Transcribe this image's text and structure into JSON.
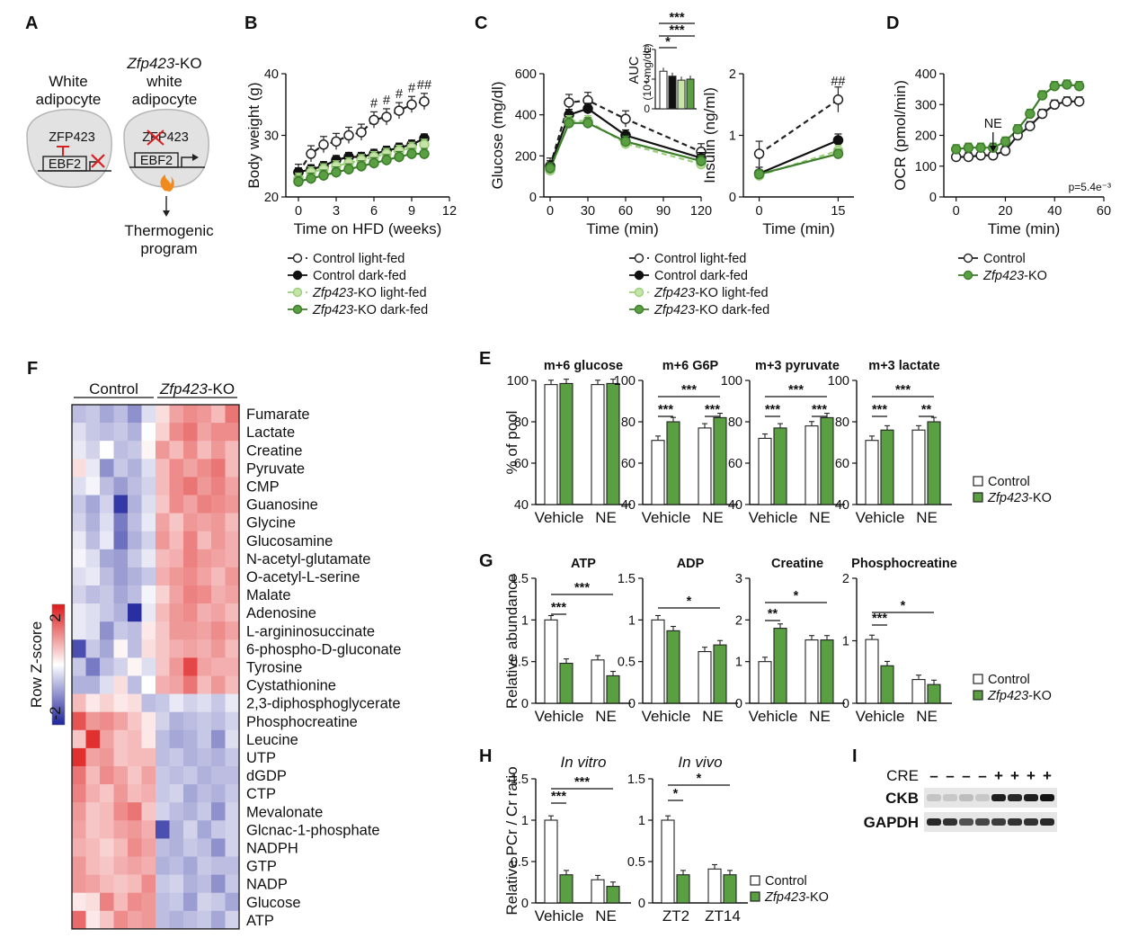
{
  "panel_labels": {
    "A": "A",
    "B": "B",
    "C": "C",
    "D": "D",
    "E": "E",
    "F": "F",
    "G": "G",
    "H": "H",
    "I": "I"
  },
  "panelA": {
    "left_title_1": "White",
    "left_title_2": "adipocyte",
    "right_title_1_italic": "Zfp423",
    "right_title_1_rest": "-KO",
    "right_title_2": "white",
    "right_title_3": "adipocyte",
    "protein": "ZFP423",
    "protein_struck": "ZFP423",
    "gene": "EBF2",
    "outcome_1": "Thermogenic",
    "outcome_2": "program"
  },
  "legend_diet": [
    {
      "label_italic": "",
      "label": "Control light-fed",
      "fill": "#ffffff",
      "stroke": "#222222",
      "dash": "6,4"
    },
    {
      "label_italic": "",
      "label": "Control dark-fed",
      "fill": "#111111",
      "stroke": "#111111",
      "dash": ""
    },
    {
      "label_italic": "Zfp423",
      "label": "-KO light-fed",
      "fill": "#c6e3a8",
      "stroke": "#9ccf7b",
      "dash": "6,4"
    },
    {
      "label_italic": "Zfp423",
      "label": "-KO dark-fed",
      "fill": "#5aa042",
      "stroke": "#3d7d2c",
      "dash": ""
    }
  ],
  "legend_geno": [
    {
      "label_italic": "",
      "label": "Control",
      "fill": "#ffffff",
      "stroke": "#222222"
    },
    {
      "label_italic": "Zfp423",
      "label": "-KO",
      "fill": "#5aa042",
      "stroke": "#3d7d2c"
    }
  ],
  "chart_data": [
    {
      "id": "B",
      "type": "line",
      "xlabel": "Time on HFD (weeks)",
      "ylabel": "Body weight (g)",
      "xlim": [
        -1,
        12
      ],
      "ylim": [
        20,
        40
      ],
      "xticks": [
        "0",
        "3",
        "6",
        "9",
        "12"
      ],
      "yticks": [
        "20",
        "30",
        "40"
      ],
      "x": [
        0,
        1,
        2,
        3,
        4,
        5,
        6,
        7,
        8,
        9,
        10
      ],
      "series": [
        {
          "name": "Control light-fed",
          "values": [
            24,
            27,
            28.5,
            29,
            30,
            30.5,
            32.5,
            33,
            34,
            35,
            35.5
          ]
        },
        {
          "name": "Control dark-fed",
          "values": [
            24,
            24.5,
            25,
            26,
            26.5,
            26.5,
            27,
            27.5,
            28,
            28.5,
            29.5
          ]
        },
        {
          "name": "Zfp423-KO light-fed",
          "values": [
            23,
            24,
            24.5,
            25,
            25.5,
            26,
            26.5,
            27,
            27.5,
            28,
            28.5
          ]
        },
        {
          "name": "Zfp423-KO dark-fed",
          "values": [
            22.5,
            23,
            23.5,
            24,
            24.5,
            25,
            25.5,
            26,
            26.5,
            27,
            27
          ]
        }
      ],
      "annotations": [
        "#",
        "#",
        "#",
        "#",
        "##"
      ]
    },
    {
      "id": "C1",
      "type": "line",
      "xlabel": "Time (min)",
      "ylabel": "Glucose (mg/dl)",
      "xlim": [
        -5,
        120
      ],
      "ylim": [
        0,
        600
      ],
      "xticks": [
        "0",
        "30",
        "60",
        "90",
        "120"
      ],
      "yticks": [
        "0",
        "200",
        "400",
        "600"
      ],
      "x": [
        0,
        15,
        30,
        60,
        120
      ],
      "series": [
        {
          "name": "Control light-fed",
          "values": [
            150,
            460,
            470,
            380,
            220
          ]
        },
        {
          "name": "Control dark-fed",
          "values": [
            150,
            400,
            430,
            300,
            190
          ]
        },
        {
          "name": "Zfp423-KO light-fed",
          "values": [
            130,
            370,
            370,
            260,
            160
          ]
        },
        {
          "name": "Zfp423-KO dark-fed",
          "values": [
            140,
            360,
            360,
            270,
            175
          ]
        }
      ]
    },
    {
      "id": "C_inset",
      "type": "bar",
      "ylabel": "AUC",
      "ylabel_units": "(10⁴ mg/dL)",
      "ylim": [
        0,
        6
      ],
      "yticks": [
        "0",
        "3",
        "6"
      ],
      "values": [
        3.8,
        3.3,
        2.9,
        3.0
      ],
      "annotations": [
        "***",
        "***",
        "*"
      ]
    },
    {
      "id": "C2",
      "type": "line",
      "xlabel": "Time (min)",
      "ylabel": "Insulin (ng/ml)",
      "xlim": [
        -3,
        18
      ],
      "ylim": [
        0,
        2
      ],
      "xticks": [
        "0",
        "15"
      ],
      "yticks": [
        "0",
        "1",
        "2"
      ],
      "x": [
        0,
        15
      ],
      "series": [
        {
          "name": "Control light-fed",
          "values": [
            0.7,
            1.58
          ]
        },
        {
          "name": "Control dark-fed",
          "values": [
            0.38,
            0.92
          ]
        },
        {
          "name": "Zfp423-KO light-fed",
          "values": [
            0.35,
            0.75
          ]
        },
        {
          "name": "Zfp423-KO dark-fed",
          "values": [
            0.37,
            0.7
          ]
        }
      ],
      "annotations": [
        "##"
      ]
    },
    {
      "id": "D",
      "type": "line",
      "xlabel": "Time (min)",
      "ylabel": "OCR (pmol/min)",
      "xlim": [
        -5,
        60
      ],
      "ylim": [
        0,
        400
      ],
      "xticks": [
        "0",
        "20",
        "40",
        "60"
      ],
      "yticks": [
        "0",
        "100",
        "200",
        "300",
        "400"
      ],
      "x": [
        0,
        5,
        10,
        15,
        20,
        25,
        30,
        35,
        40,
        45,
        50
      ],
      "series": [
        {
          "name": "Control",
          "values": [
            130,
            130,
            135,
            135,
            150,
            200,
            230,
            270,
            300,
            310,
            310
          ]
        },
        {
          "name": "Zfp423-KO",
          "values": [
            155,
            160,
            160,
            160,
            180,
            220,
            270,
            330,
            360,
            365,
            360
          ]
        }
      ],
      "annotation_arrow": "NE",
      "annotations": [
        "p=5.4e⁻³"
      ]
    },
    {
      "id": "E",
      "type": "bar",
      "ylabel": "% of pool",
      "ylim": [
        40,
        100
      ],
      "yticks": [
        "40",
        "60",
        "80",
        "100"
      ],
      "categories": [
        "Vehicle",
        "NE"
      ],
      "subpanels": [
        {
          "title": "m+6 glucose",
          "values": [
            [
              98,
              98.5
            ],
            [
              98,
              98.5
            ]
          ],
          "annotations": []
        },
        {
          "title": "m+6 G6P",
          "values": [
            [
              71,
              80
            ],
            [
              77,
              82
            ]
          ],
          "annotations": [
            "***",
            "***",
            "***"
          ]
        },
        {
          "title": "m+3 pyruvate",
          "values": [
            [
              72,
              77
            ],
            [
              78,
              82
            ]
          ],
          "annotations": [
            "***",
            "***",
            "***"
          ]
        },
        {
          "title": "m+3 lactate",
          "values": [
            [
              71,
              76
            ],
            [
              76,
              80
            ]
          ],
          "annotations": [
            "***",
            "**",
            "***"
          ]
        }
      ],
      "series": [
        {
          "name": "Control"
        },
        {
          "name": "Zfp423-KO"
        }
      ]
    },
    {
      "id": "G",
      "type": "bar",
      "ylabel": "Relative abundance",
      "categories": [
        "Vehicle",
        "NE"
      ],
      "subpanels": [
        {
          "title": "ATP",
          "ylim": [
            0,
            1.5
          ],
          "yticks": [
            "0",
            "0.5",
            "1",
            "1.5"
          ],
          "values": [
            [
              1.0,
              0.48
            ],
            [
              0.52,
              0.33
            ]
          ],
          "annotations": [
            "***",
            "***"
          ]
        },
        {
          "title": "ADP",
          "ylim": [
            0,
            1.5
          ],
          "yticks": [
            "0",
            "0.5",
            "1",
            "1.5"
          ],
          "values": [
            [
              1.0,
              0.87
            ],
            [
              0.62,
              0.7
            ]
          ],
          "annotations": [
            "*"
          ]
        },
        {
          "title": "Creatine",
          "ylim": [
            0,
            3
          ],
          "yticks": [
            "0",
            "1",
            "2",
            "3"
          ],
          "values": [
            [
              1.0,
              1.8
            ],
            [
              1.52,
              1.52
            ]
          ],
          "annotations": [
            "**",
            "*"
          ]
        },
        {
          "title": "Phosphocreatine",
          "ylim": [
            0,
            2
          ],
          "yticks": [
            "0",
            "1",
            "2"
          ],
          "values": [
            [
              1.02,
              0.6
            ],
            [
              0.38,
              0.3
            ]
          ],
          "annotations": [
            "***",
            "*"
          ]
        }
      ],
      "series": [
        {
          "name": "Control"
        },
        {
          "name": "Zfp423-KO"
        }
      ]
    },
    {
      "id": "H",
      "type": "bar",
      "ylabel": "Relative PCr / Cr ratio",
      "ylim": [
        0,
        1.5
      ],
      "yticks": [
        "0",
        "0.5",
        "1",
        "1.5"
      ],
      "subpanels": [
        {
          "title": "In vitro",
          "categories": [
            "Vehicle",
            "NE"
          ],
          "values": [
            [
              1.0,
              0.34
            ],
            [
              0.28,
              0.2
            ]
          ],
          "annotations": [
            "***",
            "***"
          ]
        },
        {
          "title": "In vivo",
          "categories": [
            "ZT2",
            "ZT14"
          ],
          "values": [
            [
              1.0,
              0.34
            ],
            [
              0.41,
              0.34
            ]
          ],
          "annotations": [
            "*",
            "*"
          ]
        }
      ],
      "series": [
        {
          "name": "Control"
        },
        {
          "name": "Zfp423-KO"
        }
      ]
    },
    {
      "id": "F",
      "type": "heatmap",
      "column_groups": [
        {
          "label": "Control",
          "label_italic": ""
        },
        {
          "label": "-KO",
          "label_italic": "Zfp423"
        }
      ],
      "colorbar_label": "Row Z-score",
      "colorbar_ticks": [
        "2",
        "-2"
      ],
      "rows": [
        "Fumarate",
        "Lactate",
        "Creatine",
        "Pyruvate",
        "CMP",
        "Guanosine",
        "Glycine",
        "Glucosamine",
        "N-acetyl-glutamate",
        "O-acetyl-L-serine",
        "Malate",
        "Adenosine",
        "L-argininosuccinate",
        "6-phospho-D-gluconate",
        "Tyrosine",
        "Cystathionine",
        "2,3-diphosphoglycerate",
        "Phosphocreatine",
        "Leucine",
        "UTP",
        "dGDP",
        "CTP",
        "Mevalonate",
        "Glcnac-1-phosphate",
        "NADPH",
        "GTP",
        "NADP",
        "Glucose",
        "ATP"
      ],
      "z": [
        [
          -0.6,
          -0.5,
          -0.8,
          -0.6,
          -1.0,
          -0.3,
          0.3,
          0.8,
          1.0,
          0.9,
          0.6,
          1.2
        ],
        [
          -0.3,
          -0.5,
          -0.6,
          -0.5,
          -0.7,
          0.0,
          0.4,
          1.0,
          1.2,
          0.8,
          1.0,
          1.0
        ],
        [
          -0.2,
          -0.4,
          0.0,
          -0.6,
          -0.5,
          0.1,
          0.9,
          0.6,
          1.0,
          0.6,
          0.9,
          0.6
        ],
        [
          0.3,
          -0.2,
          -1.0,
          -0.5,
          -0.7,
          -0.3,
          0.6,
          1.0,
          0.8,
          1.0,
          1.2,
          0.6
        ],
        [
          -0.3,
          -0.1,
          -0.6,
          -0.9,
          -0.6,
          -0.4,
          0.6,
          1.0,
          1.2,
          0.9,
          1.1,
          0.8
        ],
        [
          -0.5,
          -0.8,
          -0.4,
          -1.8,
          -0.7,
          -0.3,
          0.5,
          1.0,
          0.8,
          1.1,
          1.0,
          0.9
        ],
        [
          -0.4,
          -0.7,
          -0.3,
          -1.2,
          -0.6,
          -0.2,
          0.8,
          0.5,
          0.9,
          0.8,
          0.9,
          0.6
        ],
        [
          -0.2,
          -0.6,
          -0.2,
          -1.3,
          -0.7,
          -0.4,
          0.9,
          0.6,
          1.1,
          0.6,
          0.9,
          0.7
        ],
        [
          -0.1,
          -0.3,
          -0.8,
          -0.9,
          -0.5,
          -0.2,
          0.6,
          0.7,
          1.1,
          0.9,
          0.8,
          0.7
        ],
        [
          -0.3,
          -0.2,
          -0.6,
          -0.9,
          -0.7,
          -0.5,
          0.7,
          0.9,
          1.0,
          0.8,
          0.6,
          0.9
        ],
        [
          -0.4,
          -0.6,
          -0.5,
          -0.8,
          -0.6,
          -0.1,
          0.4,
          0.8,
          1.1,
          1.0,
          0.7,
          0.8
        ],
        [
          -0.2,
          -0.3,
          -0.5,
          -0.7,
          -1.9,
          -0.2,
          0.6,
          0.9,
          1.0,
          0.7,
          0.8,
          0.6
        ],
        [
          -0.2,
          -0.3,
          -1.0,
          -0.5,
          -0.6,
          0.2,
          0.5,
          0.9,
          0.9,
          0.8,
          1.0,
          0.8
        ],
        [
          -1.6,
          -0.5,
          -0.8,
          0.1,
          -0.6,
          0.3,
          0.5,
          0.7,
          0.8,
          0.7,
          0.9,
          0.6
        ],
        [
          -0.5,
          -1.2,
          -0.6,
          -0.4,
          0.1,
          -0.3,
          0.5,
          0.9,
          1.6,
          0.8,
          0.7,
          0.7
        ],
        [
          -0.7,
          -0.7,
          -0.3,
          0.3,
          -0.6,
          0.0,
          0.7,
          0.8,
          1.2,
          0.6,
          0.9,
          0.6
        ],
        [
          0.6,
          0.2,
          0.4,
          0.2,
          0.3,
          -0.6,
          -0.5,
          -0.2,
          -0.4,
          -0.3,
          -0.5,
          -0.2
        ],
        [
          1.5,
          0.9,
          1.0,
          0.8,
          0.5,
          0.2,
          -0.4,
          -0.7,
          -0.6,
          -0.5,
          -0.6,
          -0.4
        ],
        [
          0.5,
          1.8,
          0.8,
          0.5,
          0.6,
          0.2,
          -0.6,
          -0.8,
          -0.7,
          -0.5,
          -1.0,
          -0.3
        ],
        [
          1.8,
          0.8,
          0.9,
          0.5,
          0.6,
          0.6,
          -0.6,
          -0.5,
          -0.7,
          -0.6,
          -0.7,
          -0.5
        ],
        [
          1.2,
          0.6,
          1.0,
          0.8,
          0.5,
          0.8,
          -0.5,
          -0.6,
          -0.5,
          -0.7,
          -0.6,
          -0.6
        ],
        [
          1.1,
          0.7,
          0.5,
          0.9,
          0.6,
          0.7,
          -0.5,
          -0.4,
          -0.8,
          -0.6,
          -0.7,
          -0.5
        ],
        [
          0.9,
          0.5,
          0.6,
          1.0,
          1.2,
          0.5,
          -0.4,
          -0.6,
          -0.7,
          -0.5,
          -1.0,
          -0.4
        ],
        [
          0.8,
          0.5,
          0.6,
          0.8,
          0.9,
          0.7,
          -1.6,
          -0.7,
          -0.4,
          -0.8,
          -0.5,
          -0.4
        ],
        [
          0.7,
          0.6,
          0.4,
          0.6,
          1.0,
          0.8,
          -0.6,
          -0.7,
          -0.5,
          -0.6,
          -1.0,
          -0.4
        ],
        [
          0.9,
          0.6,
          0.5,
          0.7,
          0.8,
          0.7,
          -0.7,
          -0.6,
          -0.8,
          -0.5,
          -0.6,
          -0.6
        ],
        [
          0.9,
          0.8,
          0.6,
          0.5,
          0.6,
          1.0,
          -0.5,
          -0.4,
          -0.7,
          -0.6,
          -1.0,
          -0.5
        ],
        [
          0.2,
          0.3,
          1.1,
          0.6,
          1.0,
          0.9,
          -0.6,
          -0.5,
          -0.9,
          -0.4,
          -0.5,
          -0.8
        ],
        [
          1.3,
          0.2,
          0.5,
          1.0,
          0.8,
          0.9,
          -0.6,
          -0.7,
          -0.6,
          -0.5,
          -0.8,
          -0.4
        ]
      ]
    },
    {
      "id": "I",
      "type": "table",
      "row_label": "CRE",
      "lanes": [
        "–",
        "–",
        "–",
        "–",
        "+",
        "+",
        "+",
        "+"
      ],
      "bands": [
        {
          "name": "CKB",
          "intensity": [
            0.12,
            0.1,
            0.15,
            0.1,
            0.95,
            0.9,
            0.95,
            1.0
          ]
        },
        {
          "name": "GAPDH",
          "intensity": [
            0.9,
            0.85,
            0.7,
            0.75,
            0.8,
            0.85,
            0.85,
            0.9
          ]
        }
      ]
    }
  ]
}
